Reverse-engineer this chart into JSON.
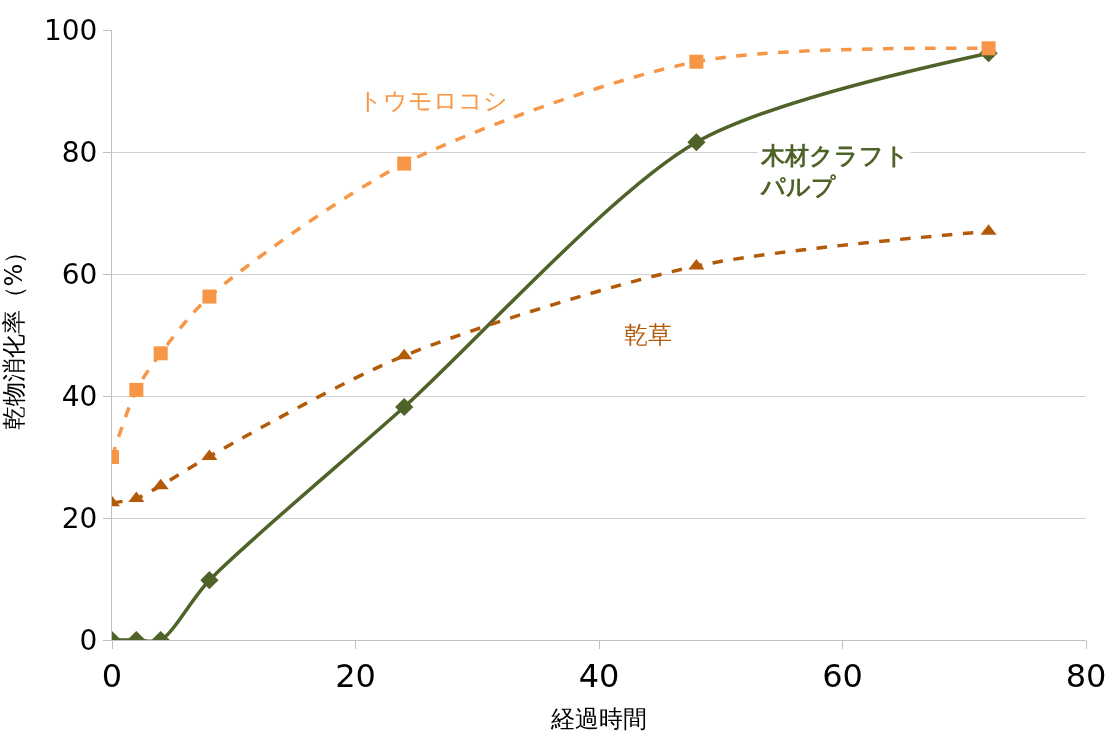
{
  "chart_data": {
    "type": "line",
    "xlabel": "経過時間",
    "ylabel": "乾物消化率（%）",
    "xlim": [
      0,
      80
    ],
    "xticks": [
      0,
      20,
      40,
      60,
      80
    ],
    "ylim": [
      0,
      100
    ],
    "yticks": [
      0,
      20,
      40,
      60,
      80,
      100
    ],
    "grid": "y",
    "legend": false,
    "series": [
      {
        "name": "トウモロコシ",
        "color": "#f79646",
        "marker": "square",
        "line_style": "dashed",
        "x": [
          0,
          2,
          4,
          8,
          24,
          48,
          72
        ],
        "values": [
          30,
          41,
          47,
          56.3,
          78.1,
          94.8,
          97
        ]
      },
      {
        "name": "乾草",
        "color": "#b35a09",
        "marker": "triangle",
        "line_style": "dashed",
        "x": [
          0,
          2,
          4,
          8,
          24,
          48,
          72
        ],
        "values": [
          22.5,
          23.2,
          25.3,
          30.1,
          46.6,
          61.3,
          67
        ]
      },
      {
        "name": "木材クラフトパルプ",
        "color": "#4f6228",
        "marker": "diamond",
        "line_style": "solid",
        "x": [
          0,
          2,
          4,
          8,
          24,
          48,
          72
        ],
        "values": [
          0,
          0,
          0,
          9.8,
          38.2,
          81.6,
          96.2
        ]
      }
    ]
  }
}
